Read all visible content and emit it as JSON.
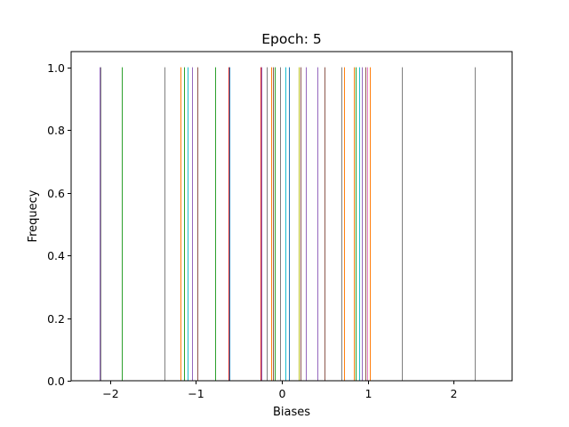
{
  "chart_data": {
    "type": "bar",
    "title": "Epoch: 5",
    "xlabel": "Biases",
    "ylabel": "Frequecy",
    "xlim": [
      -2.45,
      2.68
    ],
    "ylim": [
      0,
      1.05
    ],
    "xticks": [
      {
        "value": -2,
        "label": "−2"
      },
      {
        "value": -1,
        "label": "−1"
      },
      {
        "value": 0,
        "label": "0"
      },
      {
        "value": 1,
        "label": "1"
      },
      {
        "value": 2,
        "label": "2"
      }
    ],
    "yticks": [
      {
        "value": 0.0,
        "label": "0.0"
      },
      {
        "value": 0.2,
        "label": "0.2"
      },
      {
        "value": 0.4,
        "label": "0.4"
      },
      {
        "value": 0.6,
        "label": "0.6"
      },
      {
        "value": 0.8,
        "label": "0.8"
      },
      {
        "value": 1.0,
        "label": "1.0"
      }
    ],
    "grid": false,
    "legend": "none",
    "bars": [
      {
        "x": -2.12,
        "value": 1,
        "color": "#9467bd"
      },
      {
        "x": -2.11,
        "value": 1,
        "color": "#7f7f7f"
      },
      {
        "x": -1.86,
        "value": 1,
        "color": "#2ca02c"
      },
      {
        "x": -1.36,
        "value": 1,
        "color": "#7f7f7f"
      },
      {
        "x": -1.18,
        "value": 1,
        "color": "#ff7f0e"
      },
      {
        "x": -1.14,
        "value": 1,
        "color": "#2ca02c"
      },
      {
        "x": -1.1,
        "value": 1,
        "color": "#17becf"
      },
      {
        "x": -1.04,
        "value": 1,
        "color": "#9467bd"
      },
      {
        "x": -0.98,
        "value": 1,
        "color": "#8c564b"
      },
      {
        "x": -0.77,
        "value": 1,
        "color": "#2ca02c"
      },
      {
        "x": -0.62,
        "value": 1,
        "color": "#d62728"
      },
      {
        "x": -0.61,
        "value": 1,
        "color": "#1f77b4"
      },
      {
        "x": -0.25,
        "value": 1,
        "color": "#d62728"
      },
      {
        "x": -0.24,
        "value": 1,
        "color": "#9467bd"
      },
      {
        "x": -0.17,
        "value": 1,
        "color": "#7f7f7f"
      },
      {
        "x": -0.12,
        "value": 1,
        "color": "#ff7f0e"
      },
      {
        "x": -0.1,
        "value": 1,
        "color": "#8c564b"
      },
      {
        "x": -0.08,
        "value": 1,
        "color": "#2ca02c"
      },
      {
        "x": -0.02,
        "value": 1,
        "color": "#7f7f7f"
      },
      {
        "x": 0.04,
        "value": 1,
        "color": "#17becf"
      },
      {
        "x": 0.08,
        "value": 1,
        "color": "#1f77b4"
      },
      {
        "x": 0.2,
        "value": 1,
        "color": "#bcbd22"
      },
      {
        "x": 0.22,
        "value": 1,
        "color": "#8c564b"
      },
      {
        "x": 0.28,
        "value": 1,
        "color": "#9467bd"
      },
      {
        "x": 0.42,
        "value": 1,
        "color": "#9467bd"
      },
      {
        "x": 0.5,
        "value": 1,
        "color": "#8c564b"
      },
      {
        "x": 0.69,
        "value": 1,
        "color": "#7f7f7f"
      },
      {
        "x": 0.73,
        "value": 1,
        "color": "#ff7f0e"
      },
      {
        "x": 0.84,
        "value": 1,
        "color": "#ff7f0e"
      },
      {
        "x": 0.86,
        "value": 1,
        "color": "#2ca02c"
      },
      {
        "x": 0.9,
        "value": 1,
        "color": "#17becf"
      },
      {
        "x": 0.93,
        "value": 1,
        "color": "#9467bd"
      },
      {
        "x": 0.97,
        "value": 1,
        "color": "#8c564b"
      },
      {
        "x": 0.99,
        "value": 1,
        "color": "#e377c2"
      },
      {
        "x": 1.02,
        "value": 1,
        "color": "#ff7f0e"
      },
      {
        "x": 1.4,
        "value": 1,
        "color": "#7f7f7f"
      },
      {
        "x": 2.25,
        "value": 1,
        "color": "#7f7f7f"
      }
    ]
  }
}
